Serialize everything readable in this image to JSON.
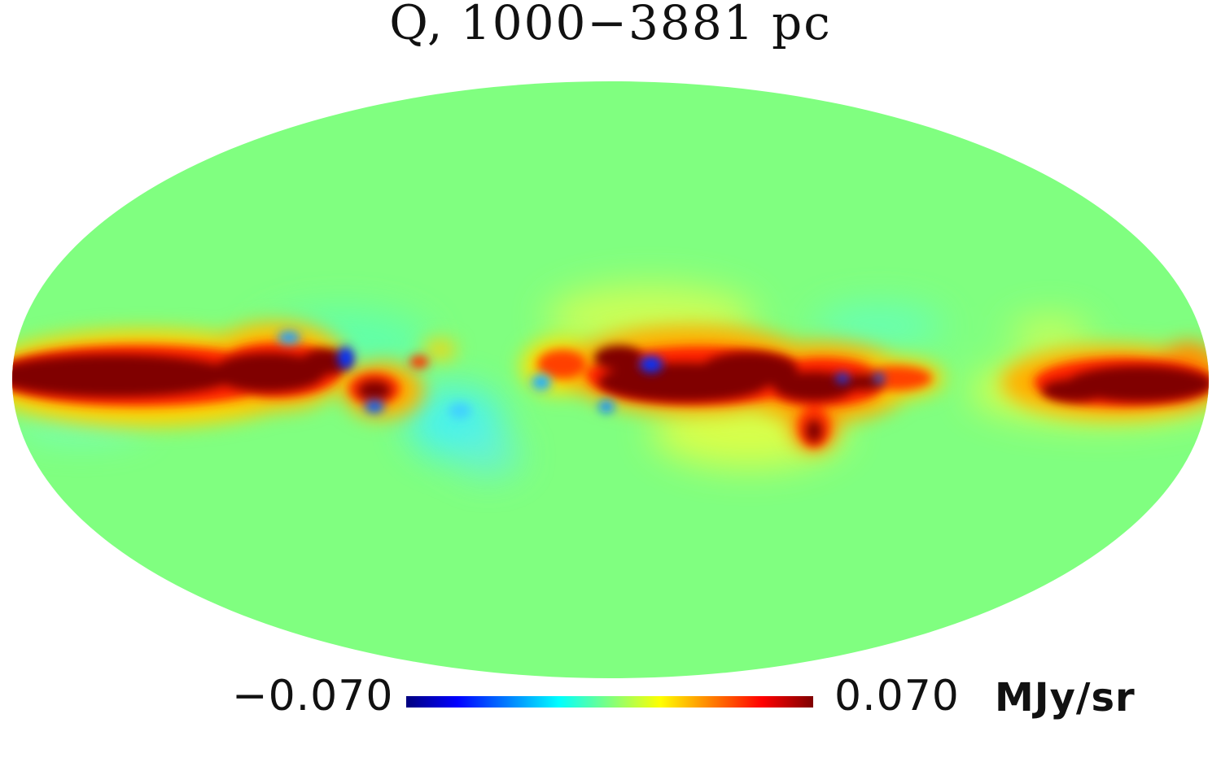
{
  "chart_data": {
    "type": "heatmap",
    "projection": "mollweide",
    "title": "Q, 1000−3881 pc",
    "colorbar": {
      "min_label": "−0.070",
      "max_label": "0.070",
      "unit": "MJy/sr",
      "min": -0.07,
      "max": 0.07,
      "colormap": [
        "#00007f",
        "#0000ff",
        "#00ffff",
        "#7fff7f",
        "#ffff00",
        "#ff0000",
        "#7f0000"
      ],
      "orientation": "horizontal",
      "placement": "bottom"
    },
    "background_value": 0.0,
    "description_features": [
      {
        "region": "galactic-plane",
        "lon_range": [
          -180,
          180
        ],
        "lat_range": [
          -8,
          8
        ],
        "value": 0.07
      },
      {
        "region": "outer-band",
        "lon_range": [
          -180,
          180
        ],
        "lat_range": [
          -20,
          20
        ],
        "value": 0.03
      }
    ]
  }
}
